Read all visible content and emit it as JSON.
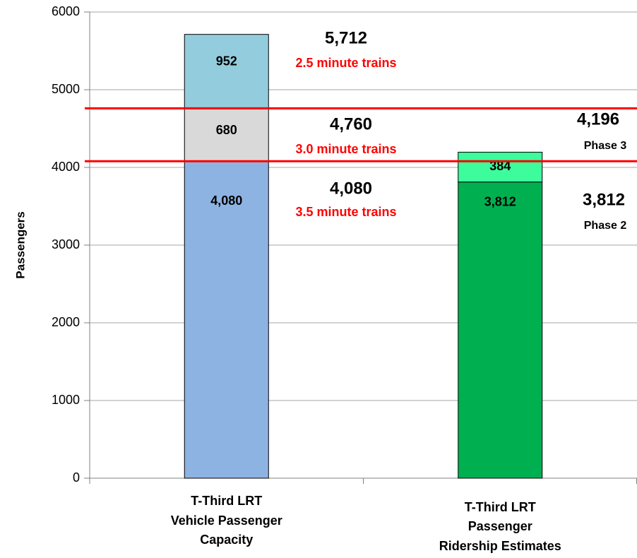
{
  "chart_data": {
    "type": "stacked_bar",
    "y_label": "Passengers",
    "categories": [
      [
        "T-Third LRT",
        "Vehicle Passenger",
        "Capacity"
      ],
      [
        "T-Third LRT",
        "Passenger",
        "Ridership Estimates"
      ]
    ],
    "series": [
      {
        "color": "#8db3e2",
        "values": [
          4080,
          null
        ],
        "value_labels": [
          "4,080",
          null
        ]
      },
      {
        "color": "#d9d9d9",
        "values": [
          680,
          null
        ],
        "value_labels": [
          "680",
          null
        ]
      },
      {
        "color": "#93cddd",
        "values": [
          952,
          null
        ],
        "value_labels": [
          "952",
          null
        ]
      },
      {
        "color": "#00b050",
        "values": [
          null,
          3812
        ],
        "value_labels": [
          null,
          "3,812"
        ]
      },
      {
        "color": "#3cfc9c",
        "values": [
          null,
          384
        ],
        "value_labels": [
          null,
          "384"
        ]
      }
    ],
    "reference_lines": [
      {
        "value": 4760,
        "color": "#ff0000"
      },
      {
        "value": 4080,
        "color": "#ff0000"
      }
    ],
    "annotations": [
      {
        "label": "5,712",
        "sublabel": "2.5 minute trains"
      },
      {
        "label": "4,760",
        "sublabel": "3.0 minute trains"
      },
      {
        "label": "4,080",
        "sublabel": "3.5 minute trains"
      },
      {
        "label": "4,196",
        "sublabel": "Phase 3"
      },
      {
        "label": "3,812",
        "sublabel": "Phase 2"
      }
    ],
    "ylim": [
      0,
      6000
    ],
    "yticks": [
      0,
      1000,
      2000,
      3000,
      4000,
      5000,
      6000
    ],
    "grid": true
  }
}
